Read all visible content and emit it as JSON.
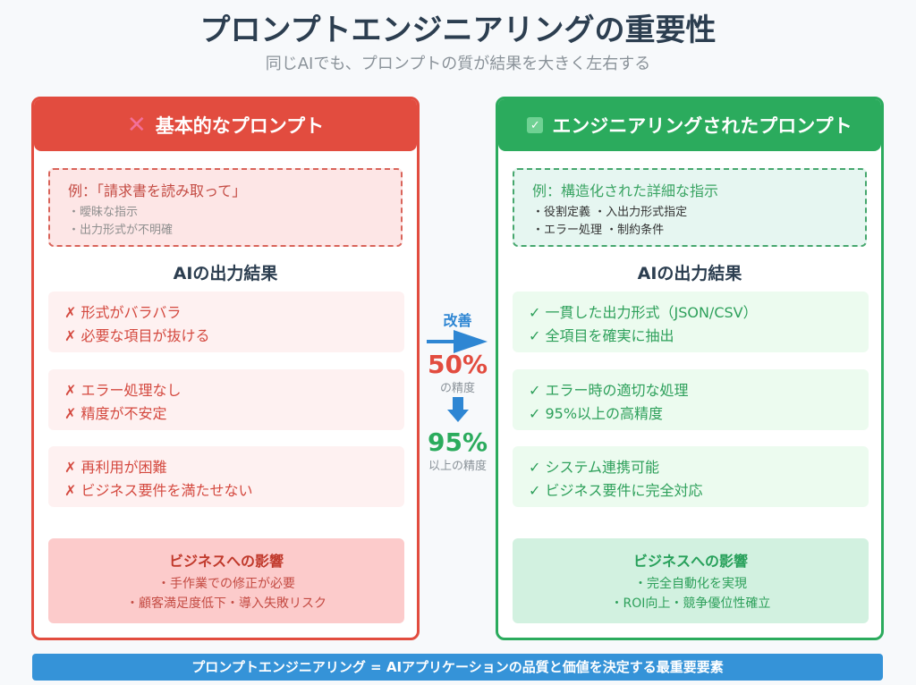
{
  "header": {
    "title": "プロンプトエンジニアリングの重要性",
    "subtitle": "同じAIでも、プロンプトの質が結果を大きく左右する"
  },
  "colors": {
    "bad": "#e24c3f",
    "good": "#2bab5d",
    "accent": "#3593d8",
    "title": "#2c3e50"
  },
  "left_panel": {
    "icon": "cross-icon",
    "icon_glyph": "✕",
    "title": "基本的なプロンプト",
    "example": {
      "title": "例：「請求書を読み取って」",
      "lines": [
        "・曖昧な指示",
        "・出力形式が不明確"
      ]
    },
    "section_title": "AIの出力結果",
    "results": [
      [
        "✗ 形式がバラバラ",
        "✗ 必要な項目が抜ける"
      ],
      [
        "✗ エラー処理なし",
        "✗ 精度が不安定"
      ],
      [
        "✗ 再利用が困難",
        "✗ ビジネス要件を満たせない"
      ]
    ],
    "impact": {
      "title": "ビジネスへの影響",
      "lines": [
        "・手作業での修正が必要",
        "・顧客満足度低下・導入失敗リスク"
      ]
    }
  },
  "right_panel": {
    "icon": "checkbox-icon",
    "icon_glyph": "✓",
    "title": "エンジニアリングされたプロンプト",
    "example": {
      "title": "例：構造化された詳細な指示",
      "lines": [
        "・役割定義 ・入出力形式指定",
        "・エラー処理 ・制約条件"
      ]
    },
    "section_title": "AIの出力結果",
    "results": [
      [
        "✓ 一貫した出力形式（JSON/CSV）",
        "✓ 全項目を確実に抽出"
      ],
      [
        "✓ エラー時の適切な処理",
        "✓ 95%以上の高精度"
      ],
      [
        "✓ システム連携可能",
        "✓ ビジネス要件に完全対応"
      ]
    ],
    "impact": {
      "title": "ビジネスへの影響",
      "lines": [
        "・完全自動化を実現",
        "・ROI向上・競争優位性確立"
      ]
    }
  },
  "middle": {
    "improve_label": "改善",
    "before_value": "50%",
    "before_label": "の精度",
    "after_value": "95%",
    "after_label": "以上の精度"
  },
  "footer": {
    "banner": "プロンプトエンジニアリング = AIアプリケーションの品質と価値を決定する最重要要素"
  }
}
